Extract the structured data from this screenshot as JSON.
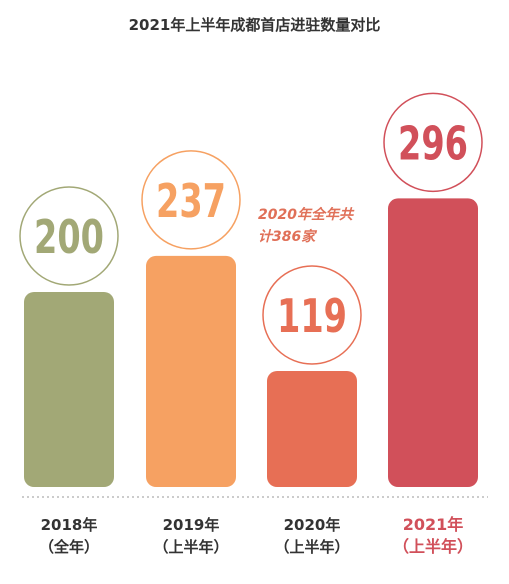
{
  "chart_data": {
    "type": "bar",
    "title": "2021年上半年成都首店进驻数量对比",
    "categories": [
      {
        "line1": "2018年",
        "line2": "（全年）"
      },
      {
        "line1": "2019年",
        "line2": "（上半年）"
      },
      {
        "line1": "2020年",
        "line2": "（上半年）"
      },
      {
        "line1": "2021年",
        "line2": "（上半年）"
      }
    ],
    "values": [
      200,
      237,
      119,
      296
    ],
    "value_labels": [
      "200",
      "237",
      "119",
      "296"
    ],
    "colors": [
      "#a2a876",
      "#f6a162",
      "#e76f55",
      "#d1505a"
    ],
    "highlight_index": 3,
    "annotation": {
      "line1": "2020年全年共",
      "line2": "计386家"
    },
    "grid": false,
    "legend": "none"
  }
}
